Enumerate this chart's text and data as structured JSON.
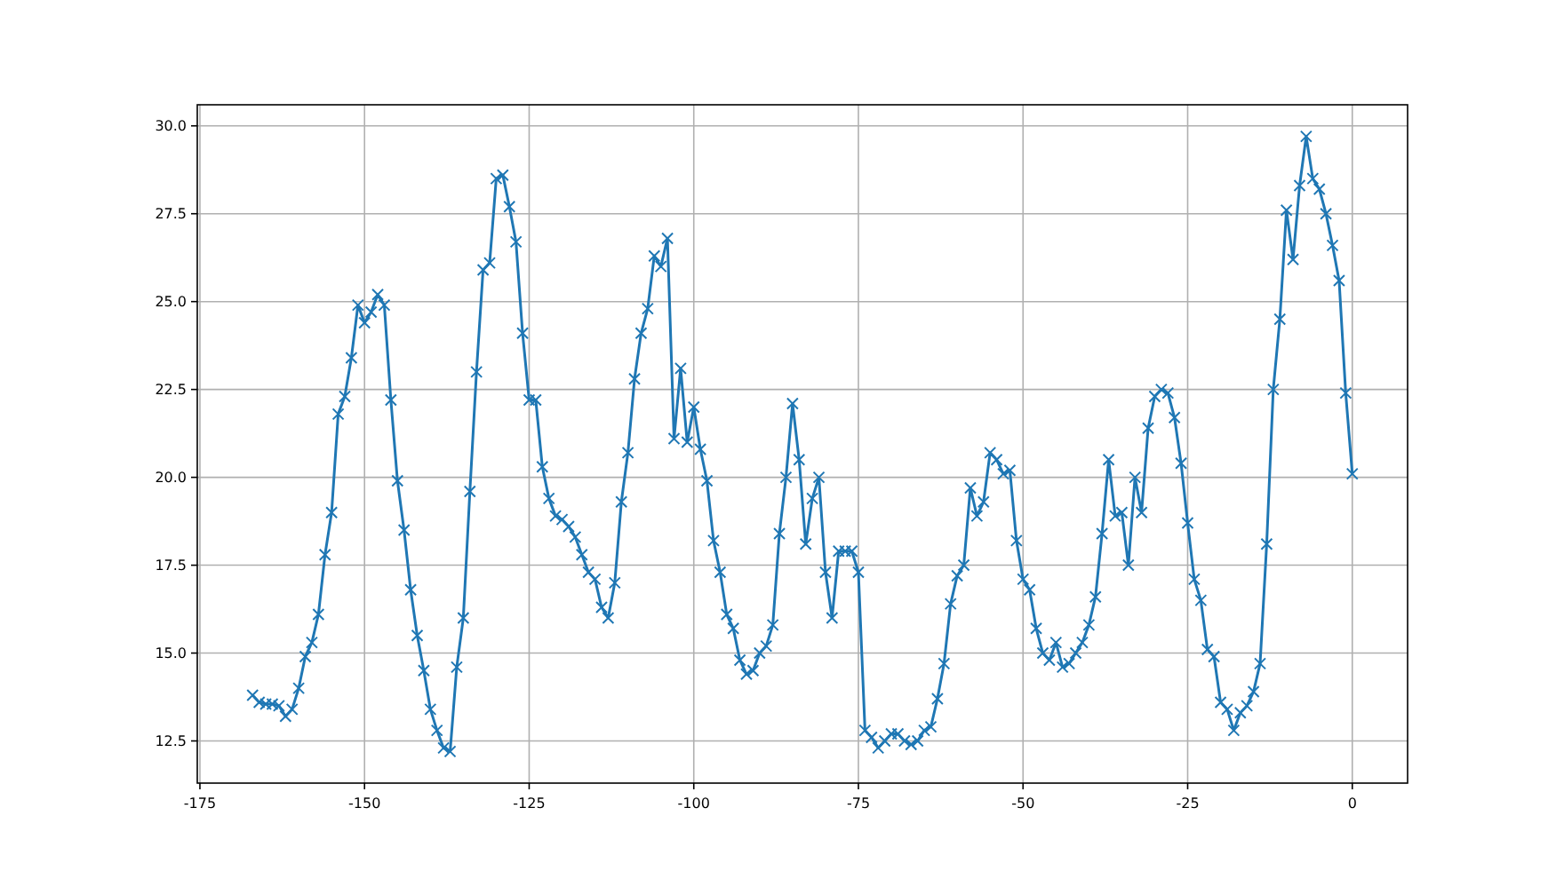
{
  "chart_data": {
    "type": "line",
    "marker": "cross",
    "line_style": "solid",
    "grid": true,
    "xlim": [
      -175.4,
      8.4
    ],
    "xticks": [
      -175,
      -150,
      -125,
      -100,
      -75,
      -50,
      -25,
      0
    ],
    "ylim": [
      11.3,
      30.6
    ],
    "yticks": [
      {
        "value": 12.5,
        "label": "12.5"
      },
      {
        "value": 15,
        "label": "15.0"
      },
      {
        "value": 17.5,
        "label": "17.5"
      },
      {
        "value": 20,
        "label": "20.0"
      },
      {
        "value": 22.5,
        "label": "22.5"
      },
      {
        "value": 25,
        "label": "25.0"
      },
      {
        "value": 27.5,
        "label": "27.5"
      },
      {
        "value": 30,
        "label": "30.0"
      }
    ],
    "x": [
      -167,
      -166,
      -165,
      -164,
      -163,
      -162,
      -161,
      -160,
      -159,
      -158,
      -157,
      -156,
      -155,
      -154,
      -153,
      -152,
      -151,
      -150,
      -149,
      -148,
      -147,
      -146,
      -145,
      -144,
      -143,
      -142,
      -141,
      -140,
      -139,
      -138,
      -137,
      -136,
      -135,
      -134,
      -133,
      -132,
      -131,
      -130,
      -129,
      -128,
      -127,
      -126,
      -125,
      -124,
      -123,
      -122,
      -121,
      -120,
      -119,
      -118,
      -117,
      -116,
      -115,
      -114,
      -113,
      -112,
      -111,
      -110,
      -109,
      -108,
      -107,
      -106,
      -105,
      -104,
      -103,
      -102,
      -101,
      -100,
      -99,
      -98,
      -97,
      -96,
      -95,
      -94,
      -93,
      -92,
      -91,
      -90,
      -89,
      -88,
      -87,
      -86,
      -85,
      -84,
      -83,
      -82,
      -81,
      -80,
      -79,
      -78,
      -77,
      -76,
      -75,
      -74,
      -73,
      -72,
      -71,
      -70,
      -69,
      -68,
      -67,
      -66,
      -65,
      -64,
      -63,
      -62,
      -61,
      -60,
      -59,
      -58,
      -57,
      -56,
      -55,
      -54,
      -53,
      -52,
      -51,
      -50,
      -49,
      -48,
      -47,
      -46,
      -45,
      -44,
      -43,
      -42,
      -41,
      -40,
      -39,
      -38,
      -37,
      -36,
      -35,
      -34,
      -33,
      -32,
      -31,
      -30,
      -29,
      -28,
      -27,
      -26,
      -25,
      -24,
      -23,
      -22,
      -21,
      -20,
      -19,
      -18,
      -17,
      -16,
      -15,
      -14,
      -13,
      -12,
      -11,
      -10,
      -9,
      -8,
      -7,
      -6,
      -5,
      -4,
      -3,
      -2,
      -1,
      0
    ],
    "series": [
      {
        "color": "#1f77b4",
        "values": [
          13.8,
          13.6,
          13.55,
          13.55,
          13.5,
          13.2,
          13.4,
          14.0,
          14.9,
          15.3,
          16.1,
          17.8,
          19.0,
          21.8,
          22.3,
          23.4,
          24.9,
          24.4,
          24.7,
          25.2,
          24.9,
          22.2,
          19.9,
          18.5,
          16.8,
          15.5,
          14.5,
          13.4,
          12.8,
          12.3,
          12.2,
          14.6,
          16.0,
          19.6,
          23.0,
          25.9,
          26.1,
          28.5,
          28.6,
          27.7,
          26.7,
          24.1,
          22.2,
          22.2,
          20.3,
          19.4,
          18.9,
          18.8,
          18.6,
          18.3,
          17.8,
          17.3,
          17.1,
          16.3,
          16.0,
          17.0,
          19.3,
          20.7,
          22.8,
          24.1,
          24.8,
          26.3,
          26.0,
          26.8,
          21.1,
          23.1,
          21.0,
          22.0,
          20.8,
          19.9,
          18.2,
          17.3,
          16.1,
          15.7,
          14.8,
          14.4,
          14.5,
          15.0,
          15.2,
          15.8,
          18.4,
          20.0,
          22.1,
          20.5,
          18.1,
          19.4,
          20.0,
          17.3,
          16.0,
          17.9,
          17.9,
          17.9,
          17.3,
          12.8,
          12.6,
          12.3,
          12.5,
          12.7,
          12.7,
          12.5,
          12.4,
          12.5,
          12.8,
          12.9,
          13.7,
          14.7,
          16.4,
          17.2,
          17.5,
          19.7,
          18.9,
          19.3,
          20.7,
          20.5,
          20.1,
          20.2,
          18.2,
          17.1,
          16.8,
          15.7,
          15.0,
          14.8,
          15.3,
          14.6,
          14.7,
          15.0,
          15.3,
          15.8,
          16.6,
          18.4,
          20.5,
          18.9,
          19.0,
          17.5,
          20.0,
          19.0,
          21.4,
          22.3,
          22.5,
          22.4,
          21.7,
          20.4,
          18.7,
          17.1,
          16.5,
          15.1,
          14.9,
          13.6,
          13.4,
          12.8,
          13.3,
          13.5,
          13.9,
          14.7,
          18.1,
          22.5,
          24.5,
          27.6,
          26.2,
          28.3,
          29.7,
          28.5,
          28.2,
          27.5,
          26.6,
          25.6,
          22.4,
          20.1
        ]
      }
    ]
  }
}
